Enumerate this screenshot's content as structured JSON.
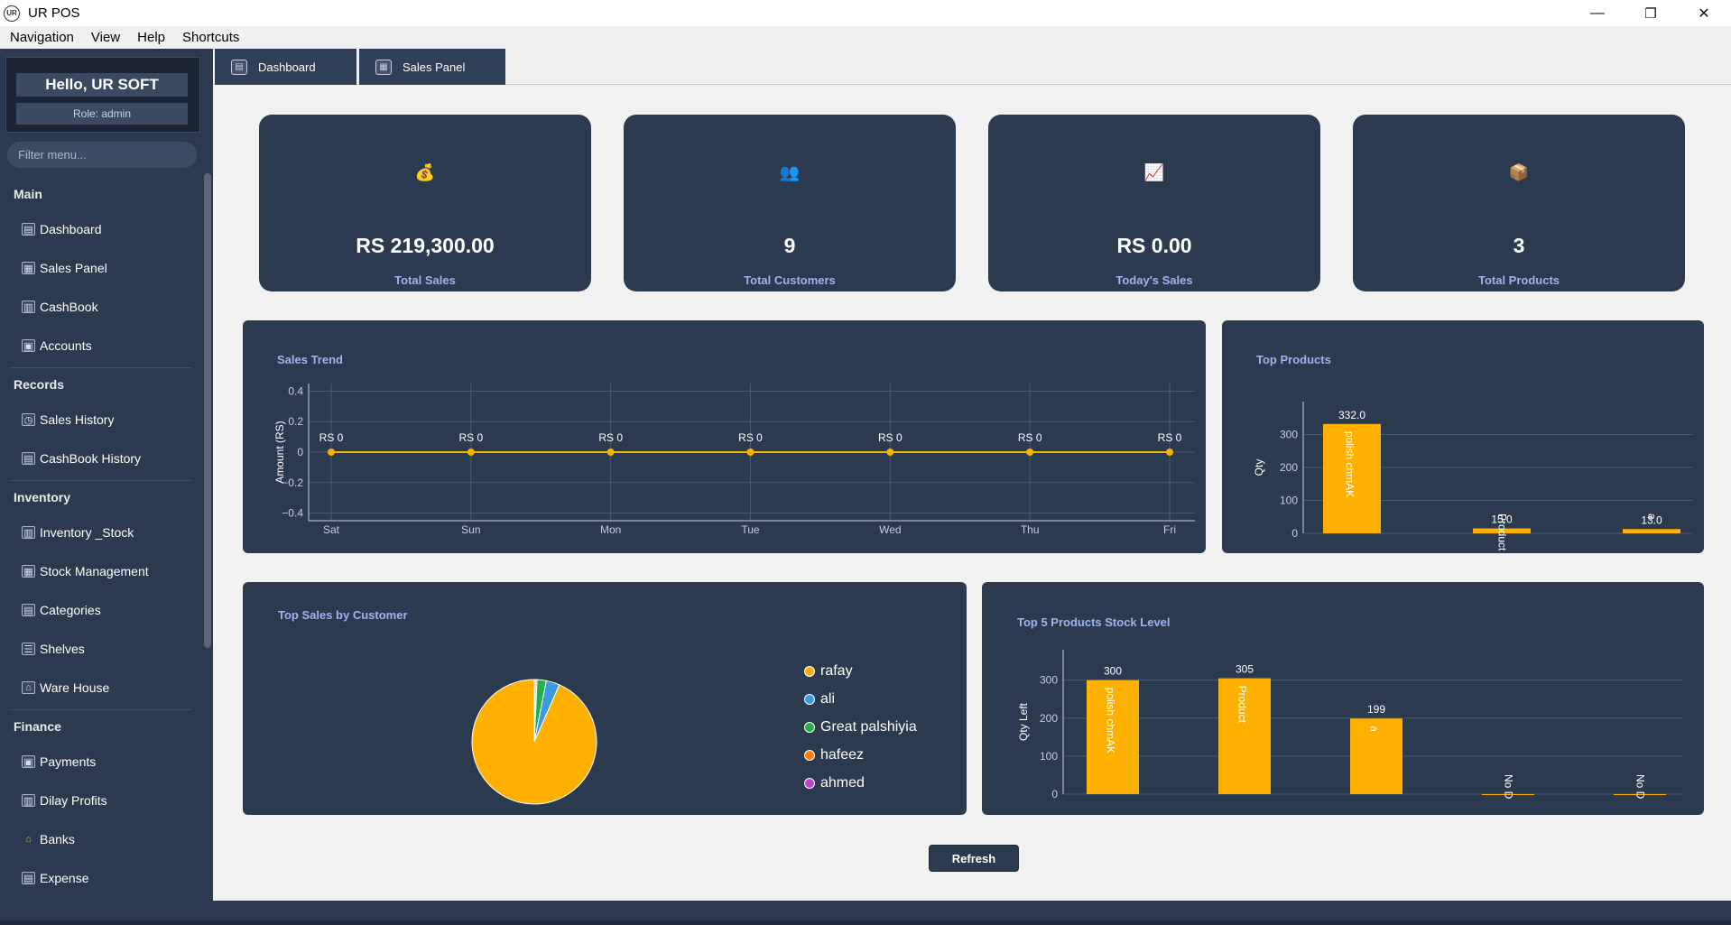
{
  "window": {
    "title": "UR POS",
    "icon_text": "UR",
    "minimize": "—",
    "maximize": "❐",
    "close": "✕"
  },
  "menubar": [
    "Navigation",
    "View",
    "Help",
    "Shortcuts"
  ],
  "sidebar": {
    "greeting": "Hello, UR SOFT",
    "role": "Role: admin",
    "filter_placeholder": "Filter menu...",
    "sections": {
      "main": "Main",
      "records": "Records",
      "inventory": "Inventory",
      "finance": "Finance"
    },
    "items": {
      "dashboard": "Dashboard",
      "sales_panel": "Sales Panel",
      "cashbook": "CashBook",
      "accounts": "Accounts",
      "sales_history": "Sales History",
      "cashbook_history": "CashBook History",
      "inventory_stock": "Inventory _Stock",
      "stock_management": "Stock Management",
      "categories": "Categories",
      "shelves": "Shelves",
      "warehouse": "Ware House",
      "payments": "Payments",
      "dilay_profits": "Dilay Profits",
      "banks": "Banks",
      "expense": "Expense"
    }
  },
  "tabs": [
    "Dashboard",
    "Sales Panel"
  ],
  "stats": [
    {
      "icon": "💰",
      "value": "RS 219,300.00",
      "label": "Total Sales"
    },
    {
      "icon": "👥",
      "value": "9",
      "label": "Total Customers"
    },
    {
      "icon": "📈",
      "value": "RS 0.00",
      "label": "Today's Sales"
    },
    {
      "icon": "📦",
      "value": "3",
      "label": "Total Products"
    }
  ],
  "chart_data": [
    {
      "type": "line",
      "title": "Sales Trend",
      "ylabel": "Amount (RS)",
      "categories": [
        "Sat",
        "Sun",
        "Mon",
        "Tue",
        "Wed",
        "Thu",
        "Fri"
      ],
      "values": [
        0,
        0,
        0,
        0,
        0,
        0,
        0
      ],
      "data_labels": [
        "RS 0",
        "RS 0",
        "RS 0",
        "RS 0",
        "RS 0",
        "RS 0",
        "RS 0"
      ],
      "yticks": [
        "0.4",
        "0.2",
        "0",
        "−0.2",
        "−0.4"
      ],
      "ylim": [
        -0.45,
        0.45
      ],
      "grid": true,
      "color": "#f4b400"
    },
    {
      "type": "bar",
      "title": "Top Products",
      "ylabel": "Qty",
      "categories": [
        "polish chmAK",
        "Product",
        "a"
      ],
      "values": [
        332,
        15,
        13
      ],
      "data_labels": [
        "332.0",
        "15.0",
        "13.0"
      ],
      "yticks": [
        "300",
        "200",
        "100",
        "0"
      ],
      "ylim": [
        0,
        400
      ],
      "grid": true,
      "color": "#ffb000"
    },
    {
      "type": "pie",
      "title": "Top Sales by Customer",
      "labels": [
        "rafay",
        "ali",
        "Great palshiyia",
        "hafeez",
        "ahmed"
      ],
      "values": [
        93.4,
        3.5,
        2.4,
        0.4,
        0.3
      ],
      "colors": [
        "#ffb000",
        "#3a9be0",
        "#22b04b",
        "#ff7f0e",
        "#c040d0"
      ],
      "legend": "right"
    },
    {
      "type": "bar",
      "title": "Top 5 Products Stock Level",
      "ylabel": "Qty Left",
      "categories": [
        "polish chmAK",
        "Product",
        "a",
        "No D",
        "No D"
      ],
      "values": [
        300,
        305,
        199,
        0,
        0
      ],
      "data_labels": [
        "300",
        "305",
        "199",
        "",
        ""
      ],
      "yticks": [
        "300",
        "200",
        "100",
        "0"
      ],
      "ylim": [
        0,
        380
      ],
      "grid": true,
      "color": "#ffb000"
    }
  ],
  "refresh_label": "Refresh"
}
